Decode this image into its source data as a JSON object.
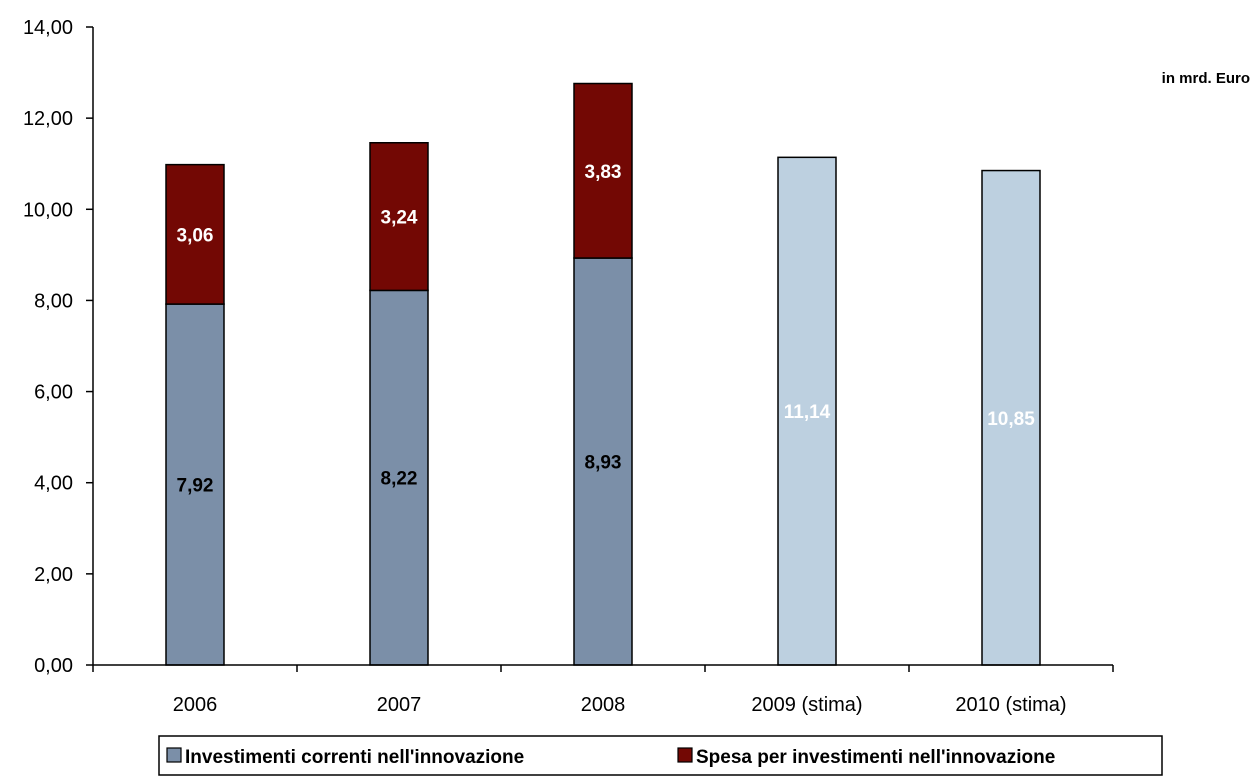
{
  "chart_data": {
    "type": "bar",
    "stacked": true,
    "categories": [
      "2006",
      "2007",
      "2008",
      "2009 (stima)",
      "2010 (stima)"
    ],
    "series": [
      {
        "name": "Investimenti correnti nell'innovazione",
        "values": [
          7.92,
          8.22,
          8.93,
          11.14,
          10.85
        ],
        "labels": [
          "7,92",
          "8,22",
          "8,93",
          "11,14",
          "10,85"
        ],
        "colors": [
          "#7b8fa8",
          "#7b8fa8",
          "#7b8fa8",
          "#bdd0e0",
          "#bdd0e0"
        ],
        "label_colors": [
          "#000000",
          "#000000",
          "#000000",
          "#ffffff",
          "#ffffff"
        ]
      },
      {
        "name": "Spesa per investimenti nell'innovazione",
        "values": [
          3.06,
          3.24,
          3.83,
          null,
          null
        ],
        "labels": [
          "3,06",
          "3,24",
          "3,83",
          "",
          ""
        ],
        "colors": [
          "#730804",
          "#730804",
          "#730804",
          "#730804",
          "#730804"
        ],
        "label_colors": [
          "#ffffff",
          "#ffffff",
          "#ffffff",
          "#ffffff",
          "#ffffff"
        ]
      }
    ],
    "unit_note": "in mrd. Euro",
    "ylim": [
      0,
      14
    ],
    "yticks": [
      0,
      2,
      4,
      6,
      8,
      10,
      12,
      14
    ],
    "ytick_labels": [
      "0,00",
      "2,00",
      "4,00",
      "6,00",
      "8,00",
      "10,00",
      "12,00",
      "14,00"
    ],
    "grid": false,
    "legend_position": "bottom",
    "legend": [
      {
        "label": "Investimenti correnti nell'innovazione",
        "color": "#7b8fa8"
      },
      {
        "label": "Spesa per investimenti nell'innovazione",
        "color": "#730804"
      }
    ]
  }
}
